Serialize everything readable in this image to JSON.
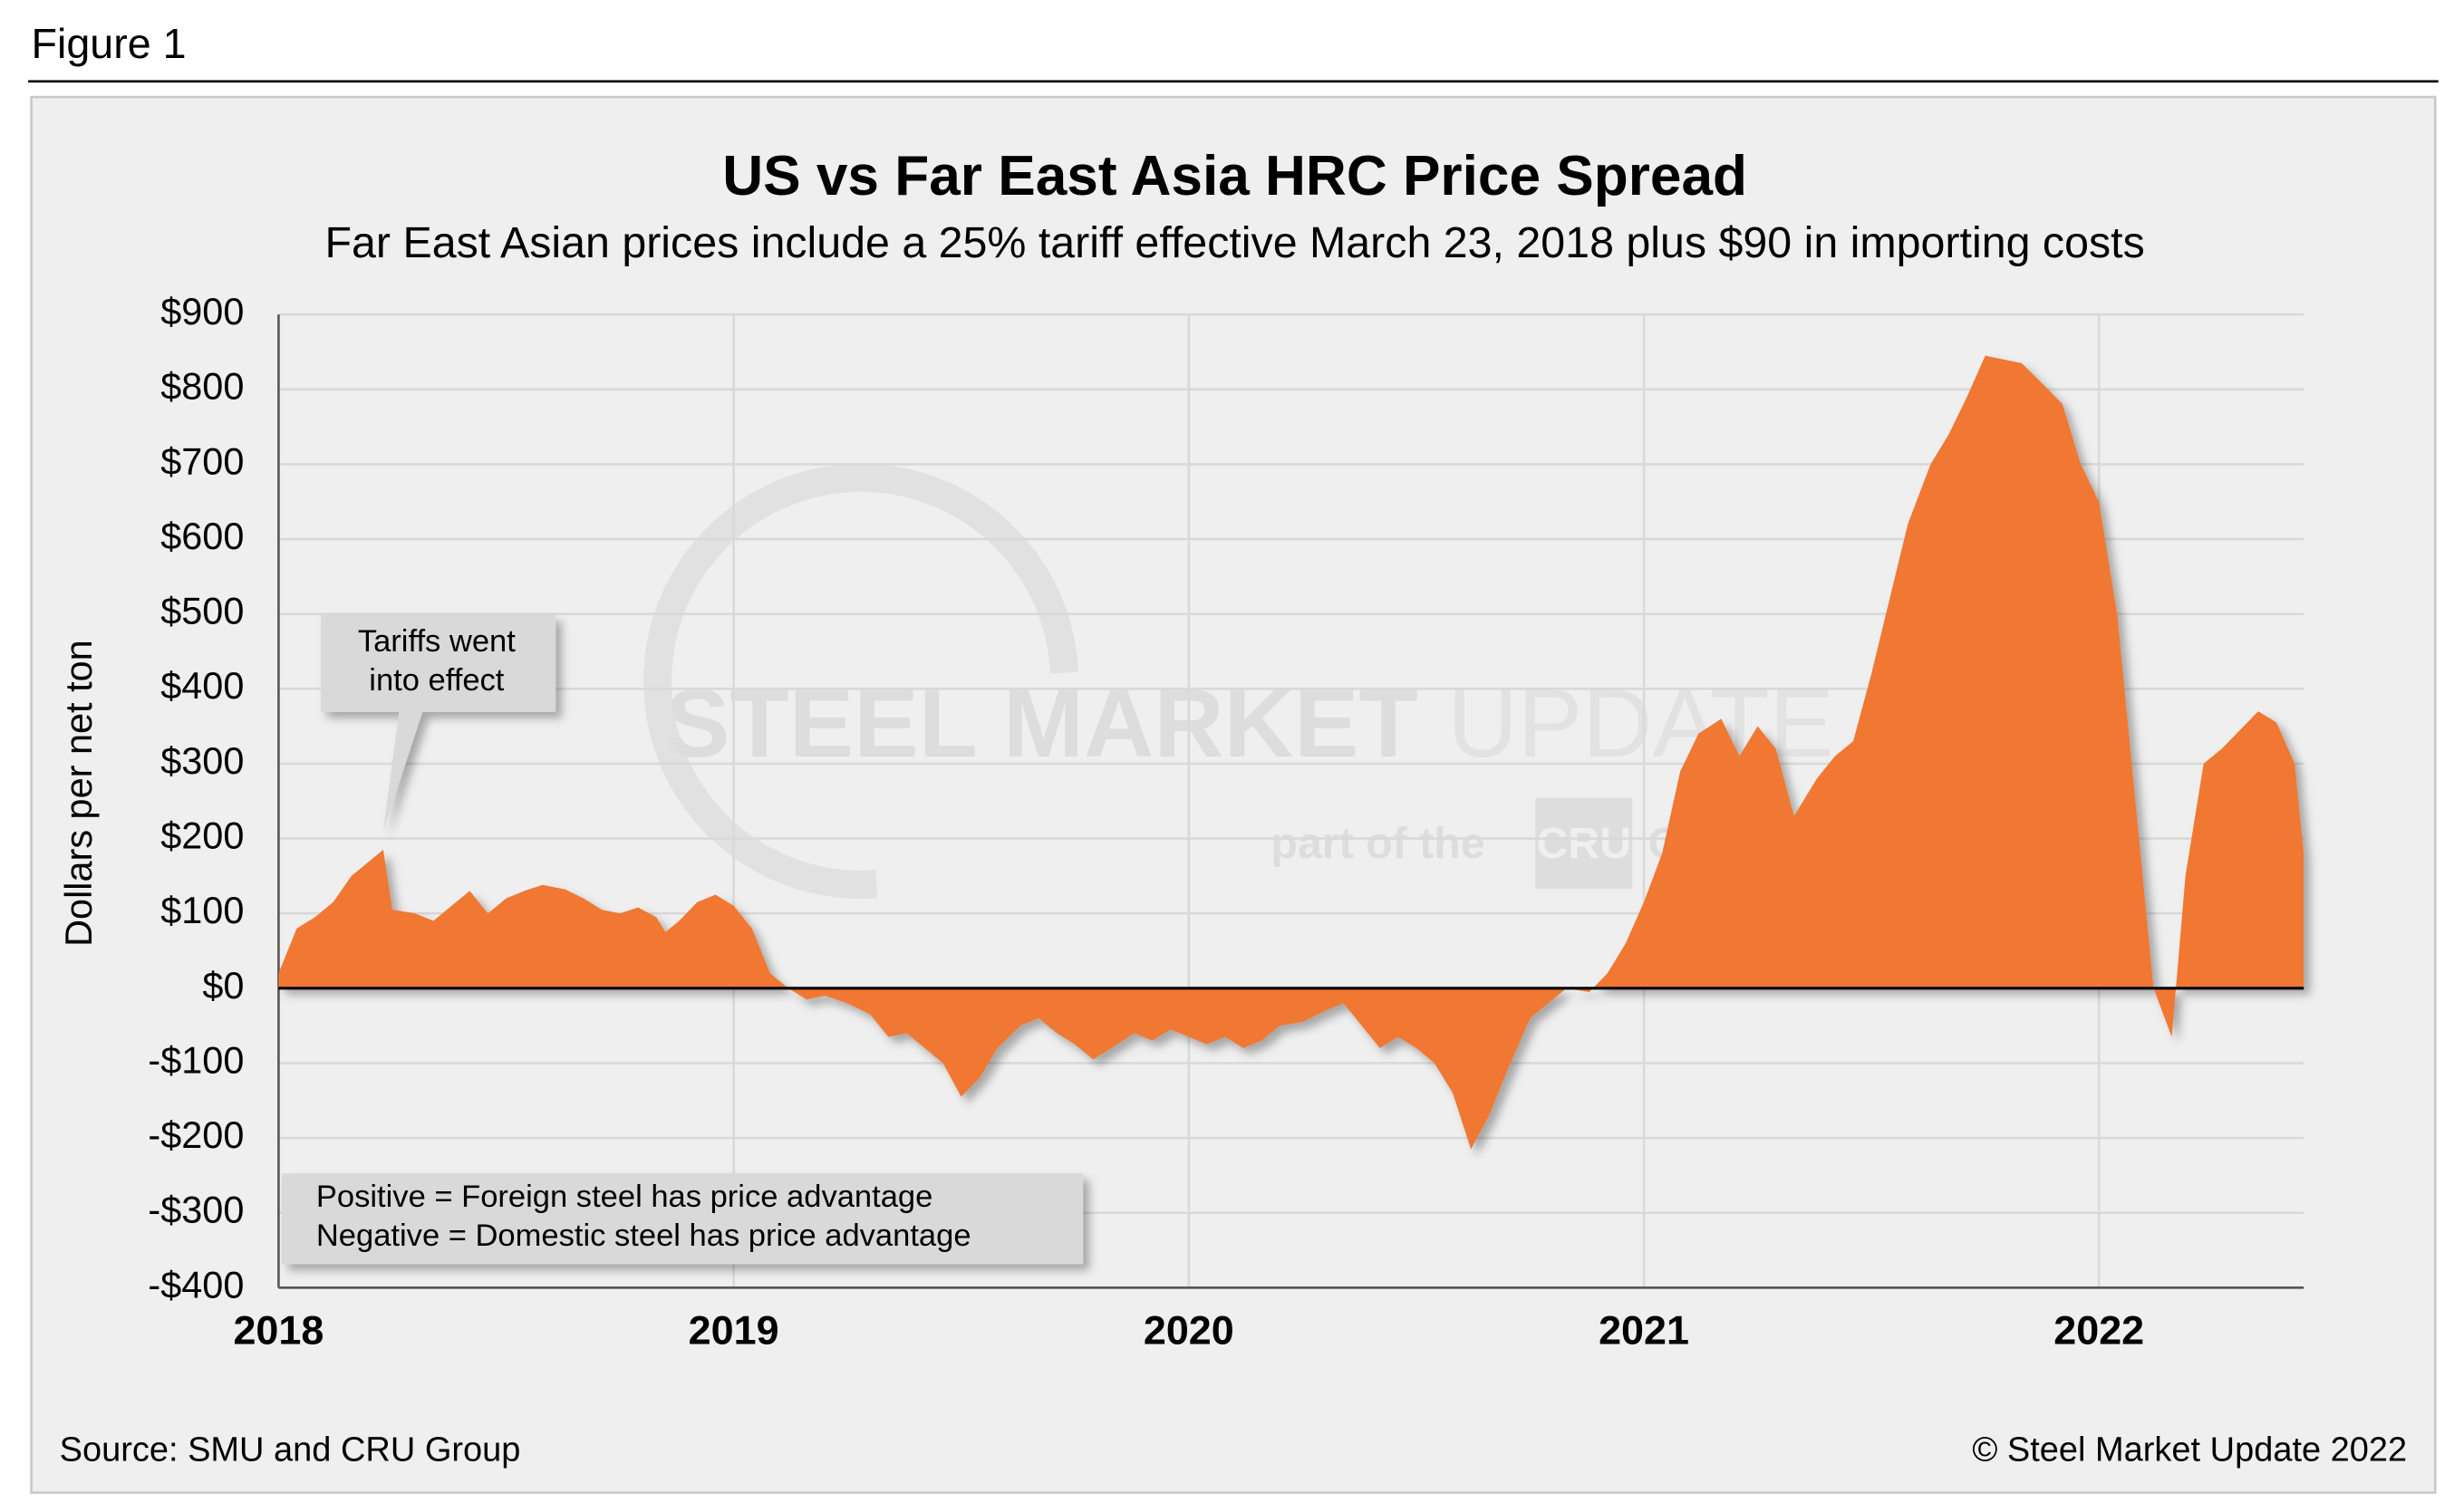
{
  "figure_label": "Figure 1",
  "source": "Source: SMU and CRU Group",
  "copyright": "© Steel Market Update 2022",
  "watermark": {
    "main": "STEEL MARKET",
    "light": "UPDATE",
    "sub_left": "part of the",
    "badge": "CRU",
    "sub_right": "Group"
  },
  "chart_data": {
    "type": "area",
    "title": "US vs Far East Asia HRC Price Spread",
    "subtitle": "Far East Asian prices include a 25% tariff effective March 23, 2018 plus $90 in importing costs",
    "y_label": "Dollars per net ton",
    "color": "#f07832",
    "grid": true,
    "annotations": [
      {
        "lines": [
          "Tariffs went",
          "into effect"
        ],
        "x": 2018.23,
        "y": 185
      },
      {
        "lines": [
          "Positive = Foreign steel has price advantage",
          "Negative = Domestic steel has price advantage"
        ]
      }
    ],
    "xlim": [
      2018,
      2022.45
    ],
    "xticks": [
      2018,
      2019,
      2020,
      2021,
      2022
    ],
    "ylim": [
      -400,
      900
    ],
    "yticks": [
      {
        "value": -400,
        "label": "-$400"
      },
      {
        "value": -300,
        "label": "-$300"
      },
      {
        "value": -200,
        "label": "-$200"
      },
      {
        "value": -100,
        "label": "-$100"
      },
      {
        "value": 0,
        "label": "$0"
      },
      {
        "value": 100,
        "label": "$100"
      },
      {
        "value": 200,
        "label": "$200"
      },
      {
        "value": 300,
        "label": "$300"
      },
      {
        "value": 400,
        "label": "$400"
      },
      {
        "value": 500,
        "label": "$500"
      },
      {
        "value": 600,
        "label": "$600"
      },
      {
        "value": 700,
        "label": "$700"
      },
      {
        "value": 800,
        "label": "$800"
      },
      {
        "value": 900,
        "label": "$900"
      }
    ],
    "x": [
      2018.0,
      2018.04,
      2018.08,
      2018.12,
      2018.16,
      2018.2,
      2018.23,
      2018.25,
      2018.3,
      2018.34,
      2018.38,
      2018.42,
      2018.46,
      2018.5,
      2018.54,
      2018.58,
      2018.63,
      2018.67,
      2018.71,
      2018.75,
      2018.79,
      2018.83,
      2018.85,
      2018.88,
      2018.92,
      2018.96,
      2019.0,
      2019.04,
      2019.08,
      2019.12,
      2019.16,
      2019.2,
      2019.25,
      2019.3,
      2019.34,
      2019.38,
      2019.42,
      2019.46,
      2019.5,
      2019.54,
      2019.58,
      2019.63,
      2019.67,
      2019.71,
      2019.75,
      2019.79,
      2019.83,
      2019.88,
      2019.92,
      2019.96,
      2020.0,
      2020.04,
      2020.08,
      2020.12,
      2020.16,
      2020.2,
      2020.25,
      2020.3,
      2020.34,
      2020.38,
      2020.42,
      2020.46,
      2020.5,
      2020.54,
      2020.58,
      2020.62,
      2020.66,
      2020.7,
      2020.75,
      2020.79,
      2020.83,
      2020.88,
      2020.92,
      2020.96,
      2021.0,
      2021.04,
      2021.08,
      2021.12,
      2021.17,
      2021.21,
      2021.25,
      2021.29,
      2021.33,
      2021.38,
      2021.42,
      2021.46,
      2021.5,
      2021.54,
      2021.58,
      2021.63,
      2021.67,
      2021.71,
      2021.75,
      2021.79,
      2021.83,
      2021.88,
      2021.92,
      2021.96,
      2022.0,
      2022.04,
      2022.08,
      2022.12,
      2022.16,
      2022.19,
      2022.23,
      2022.27,
      2022.31,
      2022.35,
      2022.39,
      2022.43,
      2022.45
    ],
    "values": [
      20,
      80,
      95,
      115,
      150,
      170,
      185,
      105,
      100,
      90,
      110,
      130,
      100,
      120,
      130,
      138,
      132,
      120,
      105,
      100,
      108,
      95,
      75,
      90,
      115,
      125,
      110,
      80,
      20,
      0,
      -15,
      -10,
      -20,
      -35,
      -65,
      -60,
      -80,
      -100,
      -145,
      -120,
      -80,
      -50,
      -40,
      -60,
      -75,
      -95,
      -80,
      -60,
      -70,
      -55,
      -65,
      -75,
      -65,
      -80,
      -70,
      -50,
      -45,
      -30,
      -20,
      -50,
      -80,
      -65,
      -80,
      -100,
      -140,
      -215,
      -170,
      -110,
      -40,
      -20,
      0,
      -5,
      20,
      60,
      115,
      180,
      290,
      340,
      360,
      310,
      350,
      320,
      230,
      280,
      310,
      330,
      420,
      520,
      620,
      700,
      740,
      790,
      845,
      840,
      835,
      805,
      780,
      700,
      650,
      500,
      250,
      0,
      -65,
      150,
      300,
      320,
      345,
      370,
      355,
      300,
      180
    ]
  }
}
